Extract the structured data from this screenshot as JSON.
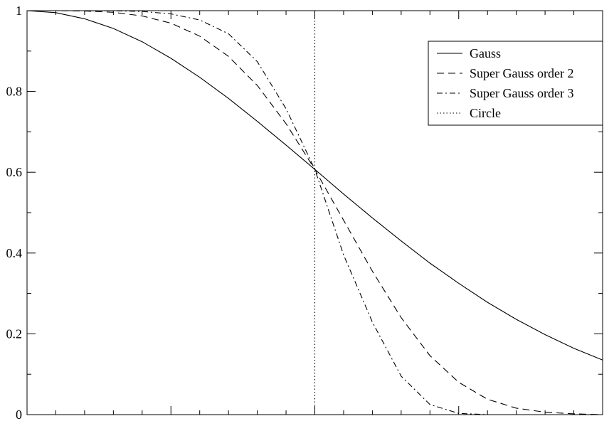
{
  "chart_data": {
    "type": "line",
    "title": "",
    "xlabel": "",
    "ylabel": "",
    "xlim": [
      0,
      2
    ],
    "ylim": [
      0,
      1
    ],
    "x_major_tick_count": 4,
    "x_minor_per_major": 5,
    "y_ticks": [
      0,
      0.2,
      0.4,
      0.6,
      0.8,
      1
    ],
    "y_tick_labels": [
      "0",
      "0.2",
      "0.4",
      "0.6",
      "0.8",
      "1"
    ],
    "grid": false,
    "legend_position": "top-right",
    "series": [
      {
        "name": "Gauss",
        "style": "solid",
        "x": [
          0,
          0.1,
          0.2,
          0.3,
          0.4,
          0.5,
          0.6,
          0.7,
          0.8,
          0.9,
          1.0,
          1.1,
          1.2,
          1.3,
          1.4,
          1.5,
          1.6,
          1.7,
          1.8,
          1.9,
          2.0
        ],
        "y": [
          1.0,
          0.995,
          0.98,
          0.956,
          0.923,
          0.882,
          0.835,
          0.783,
          0.726,
          0.667,
          0.607,
          0.546,
          0.487,
          0.43,
          0.375,
          0.325,
          0.278,
          0.236,
          0.198,
          0.164,
          0.135
        ]
      },
      {
        "name": "Super Gauss order 2",
        "style": "dashed",
        "x": [
          0,
          0.1,
          0.2,
          0.3,
          0.4,
          0.5,
          0.6,
          0.7,
          0.8,
          0.9,
          1.0,
          1.1,
          1.2,
          1.3,
          1.4,
          1.5,
          1.6,
          1.7,
          1.8,
          1.9,
          2.0
        ],
        "y": [
          1.0,
          1.0,
          0.9992,
          0.996,
          0.987,
          0.969,
          0.937,
          0.887,
          0.815,
          0.72,
          0.607,
          0.481,
          0.355,
          0.24,
          0.146,
          0.08,
          0.038,
          0.016,
          0.006,
          0.002,
          0.0
        ]
      },
      {
        "name": "Super Gauss order 3",
        "style": "dashdot",
        "x": [
          0,
          0.1,
          0.2,
          0.3,
          0.4,
          0.5,
          0.6,
          0.7,
          0.8,
          0.9,
          1.0,
          1.1,
          1.2,
          1.3,
          1.4,
          1.5,
          1.6,
          1.7,
          1.8,
          1.9,
          2.0
        ],
        "y": [
          1.0,
          1.0,
          1.0,
          0.9996,
          0.998,
          0.992,
          0.977,
          0.943,
          0.874,
          0.757,
          0.607,
          0.395,
          0.229,
          0.095,
          0.025,
          0.003,
          0.0,
          0.0,
          0.0,
          0.0,
          0.0
        ]
      },
      {
        "name": "Circle",
        "style": "dotted",
        "x": [
          0,
          1.0,
          1.0
        ],
        "y": [
          1.0,
          1.0,
          0.0
        ]
      }
    ]
  }
}
